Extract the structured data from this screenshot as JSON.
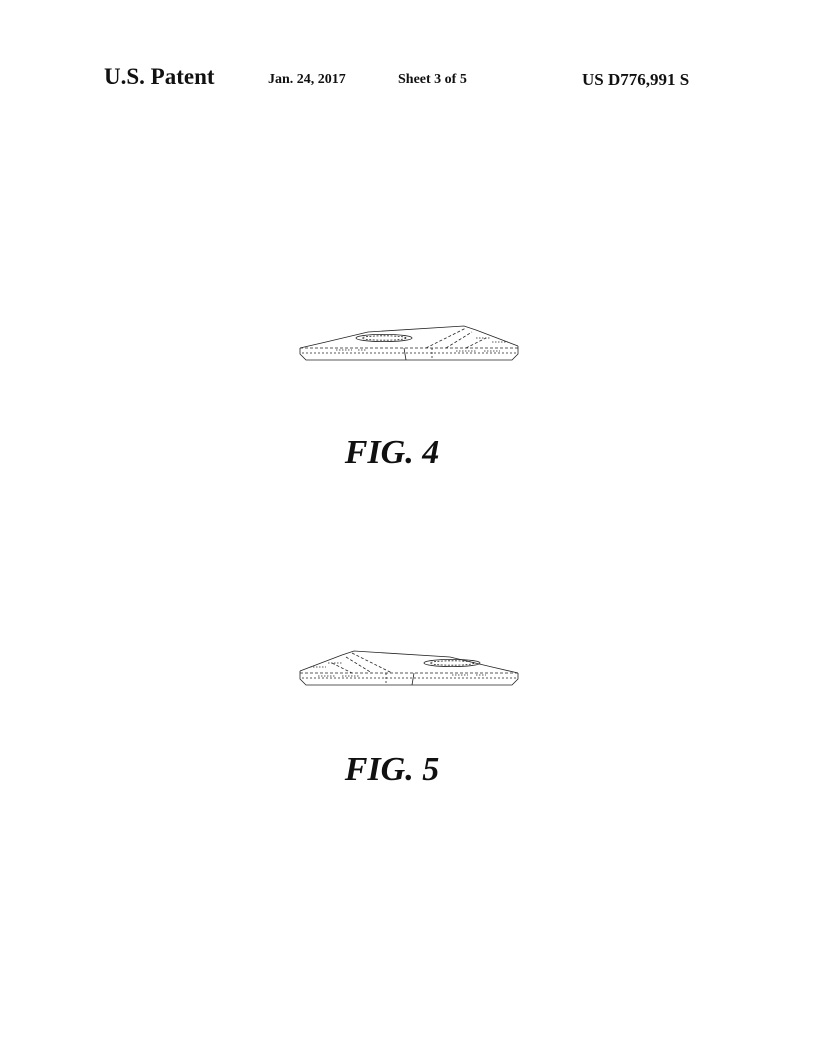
{
  "header": {
    "title": "U.S. Patent",
    "date": "Jan. 24, 2017",
    "sheet": "Sheet 3 of 5",
    "patent_number": "US D776,991 S"
  },
  "figures": [
    {
      "caption": "FIG. 4",
      "drawing_icon": "device-side-view-drawing"
    },
    {
      "caption": "FIG. 5",
      "drawing_icon": "device-side-view-drawing-reversed"
    }
  ],
  "colors": {
    "ink": "#111111",
    "background": "#ffffff"
  }
}
